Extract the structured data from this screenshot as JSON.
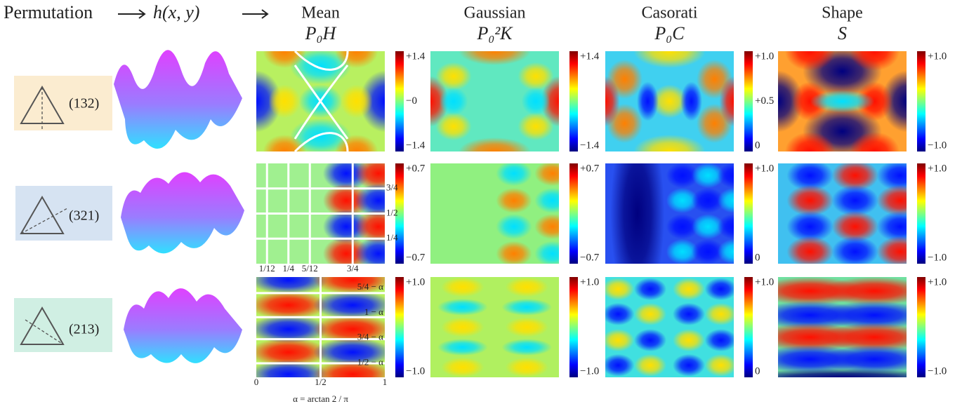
{
  "header": {
    "permutation": "Permutation",
    "function": "h(x, y)"
  },
  "columns": [
    {
      "name": "Mean",
      "symbol": "P₀H"
    },
    {
      "name": "Gaussian",
      "symbol": "P₀²K"
    },
    {
      "name": "Casorati",
      "symbol": "P₀C"
    },
    {
      "name": "Shape",
      "symbol": "S"
    }
  ],
  "rows": [
    {
      "label": "(132)",
      "colorbars": [
        [
          "+1.4",
          "−0",
          "−1.4"
        ],
        [
          "+1.4",
          "−1.4"
        ],
        [
          "+1.0",
          "+0.5",
          "0"
        ],
        [
          "+1.0",
          "−1.0"
        ]
      ]
    },
    {
      "label": "(321)",
      "colorbars": [
        [
          "+0.7",
          "−0.7"
        ],
        [
          "+0.7",
          "−0.7"
        ],
        [
          "+1.0",
          "0"
        ],
        [
          "+1.0",
          "−1.0"
        ]
      ],
      "axis_labels": {
        "x": [
          "1/12",
          "1/4",
          "5/12",
          "3/4"
        ],
        "y": [
          "3/4",
          "1/2",
          "1/4"
        ]
      }
    },
    {
      "label": "(213)",
      "colorbars": [
        [
          "+1.0",
          "−1.0"
        ],
        [
          "+1.0",
          "−1.0"
        ],
        [
          "+1.0",
          "0"
        ],
        [
          "+1.0",
          "−1.0"
        ]
      ],
      "axis_labels": {
        "x": [
          "0",
          "1/2",
          "1"
        ],
        "y": [
          "5/4 − α",
          "1 − α",
          "3/4 − α",
          "1/2 − α"
        ],
        "alpha": "α = arctan 2 / π"
      }
    }
  ]
}
